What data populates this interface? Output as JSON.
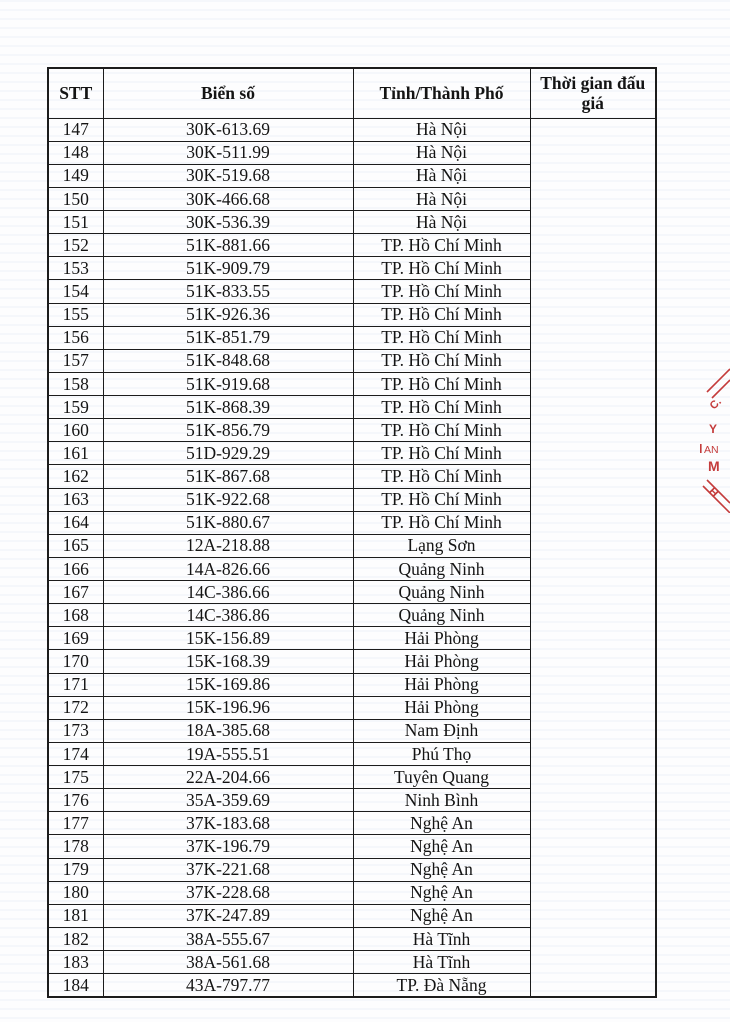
{
  "table": {
    "headers": {
      "stt": "STT",
      "plate": "Biển số",
      "province": "Tỉnh/Thành Phố",
      "auction_time": "Thời gian đấu giá"
    },
    "auction_time_value": "",
    "rows": [
      {
        "stt": "147",
        "plate": "30K-613.69",
        "province": "Hà Nội"
      },
      {
        "stt": "148",
        "plate": "30K-511.99",
        "province": "Hà Nội"
      },
      {
        "stt": "149",
        "plate": "30K-519.68",
        "province": "Hà Nội"
      },
      {
        "stt": "150",
        "plate": "30K-466.68",
        "province": "Hà Nội"
      },
      {
        "stt": "151",
        "plate": "30K-536.39",
        "province": "Hà Nội"
      },
      {
        "stt": "152",
        "plate": "51K-881.66",
        "province": "TP. Hồ Chí Minh"
      },
      {
        "stt": "153",
        "plate": "51K-909.79",
        "province": "TP. Hồ Chí Minh"
      },
      {
        "stt": "154",
        "plate": "51K-833.55",
        "province": "TP. Hồ Chí Minh"
      },
      {
        "stt": "155",
        "plate": "51K-926.36",
        "province": "TP. Hồ Chí Minh"
      },
      {
        "stt": "156",
        "plate": "51K-851.79",
        "province": "TP. Hồ Chí Minh"
      },
      {
        "stt": "157",
        "plate": "51K-848.68",
        "province": "TP. Hồ Chí Minh"
      },
      {
        "stt": "158",
        "plate": "51K-919.68",
        "province": "TP. Hồ Chí Minh"
      },
      {
        "stt": "159",
        "plate": "51K-868.39",
        "province": "TP. Hồ Chí Minh"
      },
      {
        "stt": "160",
        "plate": "51K-856.79",
        "province": "TP. Hồ Chí Minh"
      },
      {
        "stt": "161",
        "plate": "51D-929.29",
        "province": "TP. Hồ Chí Minh"
      },
      {
        "stt": "162",
        "plate": "51K-867.68",
        "province": "TP. Hồ Chí Minh"
      },
      {
        "stt": "163",
        "plate": "51K-922.68",
        "province": "TP. Hồ Chí Minh"
      },
      {
        "stt": "164",
        "plate": "51K-880.67",
        "province": "TP. Hồ Chí Minh"
      },
      {
        "stt": "165",
        "plate": "12A-218.88",
        "province": "Lạng Sơn"
      },
      {
        "stt": "166",
        "plate": "14A-826.66",
        "province": "Quảng Ninh"
      },
      {
        "stt": "167",
        "plate": "14C-386.66",
        "province": "Quảng Ninh"
      },
      {
        "stt": "168",
        "plate": "14C-386.86",
        "province": "Quảng Ninh"
      },
      {
        "stt": "169",
        "plate": "15K-156.89",
        "province": "Hải Phòng"
      },
      {
        "stt": "170",
        "plate": "15K-168.39",
        "province": "Hải Phòng"
      },
      {
        "stt": "171",
        "plate": "15K-169.86",
        "province": "Hải Phòng"
      },
      {
        "stt": "172",
        "plate": "15K-196.96",
        "province": "Hải Phòng"
      },
      {
        "stt": "173",
        "plate": "18A-385.68",
        "province": "Nam Định"
      },
      {
        "stt": "174",
        "plate": "19A-555.51",
        "province": "Phú Thọ"
      },
      {
        "stt": "175",
        "plate": "22A-204.66",
        "province": "Tuyên Quang"
      },
      {
        "stt": "176",
        "plate": "35A-359.69",
        "province": "Ninh Bình"
      },
      {
        "stt": "177",
        "plate": "37K-183.68",
        "province": "Nghệ An"
      },
      {
        "stt": "178",
        "plate": "37K-196.79",
        "province": "Nghệ An"
      },
      {
        "stt": "179",
        "plate": "37K-221.68",
        "province": "Nghệ An"
      },
      {
        "stt": "180",
        "plate": "37K-228.68",
        "province": "Nghệ An"
      },
      {
        "stt": "181",
        "plate": "37K-247.89",
        "province": "Nghệ An"
      },
      {
        "stt": "182",
        "plate": "38A-555.67",
        "province": "Hà Tĩnh"
      },
      {
        "stt": "183",
        "plate": "38A-561.68",
        "province": "Hà Tĩnh"
      },
      {
        "stt": "184",
        "plate": "43A-797.77",
        "province": "TP. Đà Nẵng"
      }
    ]
  },
  "stamp": {
    "color": "#c43b3b",
    "fragments": [
      "C.",
      "Y",
      "AN",
      "M",
      "H"
    ]
  }
}
